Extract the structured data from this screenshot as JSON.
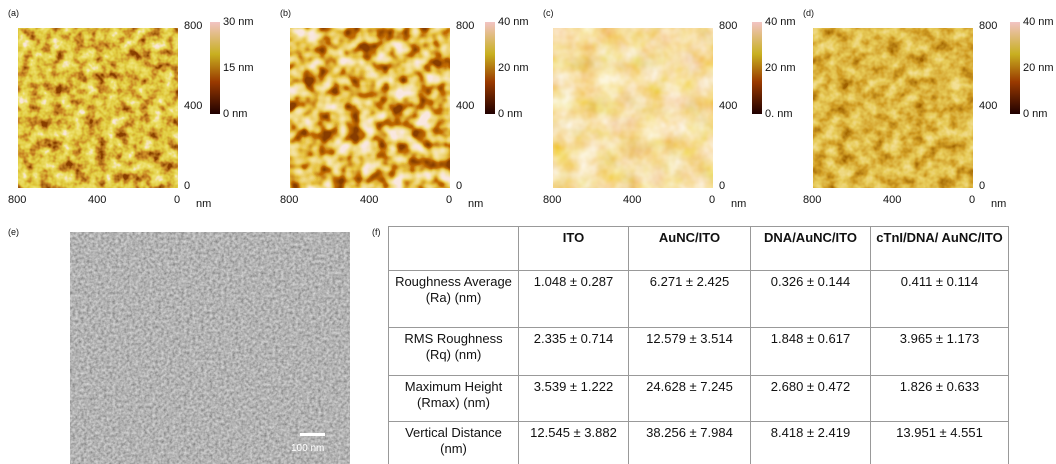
{
  "panels": [
    {
      "label": "(a)",
      "y_ticks": [
        "800",
        "400",
        "0"
      ],
      "x_ticks": [
        "800",
        "400",
        "0"
      ],
      "unit": "nm",
      "colorbar": [
        "30 nm",
        "15 nm",
        "0 nm"
      ]
    },
    {
      "label": "(b)",
      "y_ticks": [
        "800",
        "400",
        "0"
      ],
      "x_ticks": [
        "800",
        "400",
        "0"
      ],
      "unit": "nm",
      "colorbar": [
        "40 nm",
        "20 nm",
        "0 nm"
      ]
    },
    {
      "label": "(c)",
      "y_ticks": [
        "800",
        "400",
        "0"
      ],
      "x_ticks": [
        "800",
        "400",
        "0"
      ],
      "unit": "nm",
      "colorbar": [
        "40 nm",
        "20 nm",
        "0. nm"
      ]
    },
    {
      "label": "(d)",
      "y_ticks": [
        "800",
        "400",
        "0"
      ],
      "x_ticks": [
        "800",
        "400",
        "0"
      ],
      "unit": "nm",
      "colorbar": [
        "40 nm",
        "20 nm",
        "0 nm"
      ]
    }
  ],
  "sem": {
    "label": "(e)",
    "scale_bar": "100 nm"
  },
  "table": {
    "label": "(f)",
    "columns": [
      "ITO",
      "AuNC/ITO",
      "DNA/AuNC/ITO",
      "cTnI/DNA/ AuNC/ITO"
    ],
    "rows": [
      {
        "name": "Roughness Average (Ra) (nm)",
        "values": [
          "1.048 ± 0.287",
          "6.271 ± 2.425",
          "0.326 ± 0.144",
          "0.411 ± 0.114"
        ]
      },
      {
        "name": "RMS Roughness (Rq) (nm)",
        "values": [
          "2.335 ± 0.714",
          "12.579 ± 3.514",
          "1.848 ± 0.617",
          "3.965 ± 1.173"
        ]
      },
      {
        "name": "Maximum Height (Rmax) (nm)",
        "values": [
          "3.539 ± 1.222",
          "24.628 ± 7.245",
          "2.680 ± 0.472",
          "1.826 ± 0.633"
        ]
      },
      {
        "name": "Vertical Distance (nm)",
        "values": [
          "12.545 ± 3.882",
          "38.256 ± 7.984",
          "8.418 ± 2.419",
          "13.951 ± 4.551"
        ]
      }
    ]
  }
}
